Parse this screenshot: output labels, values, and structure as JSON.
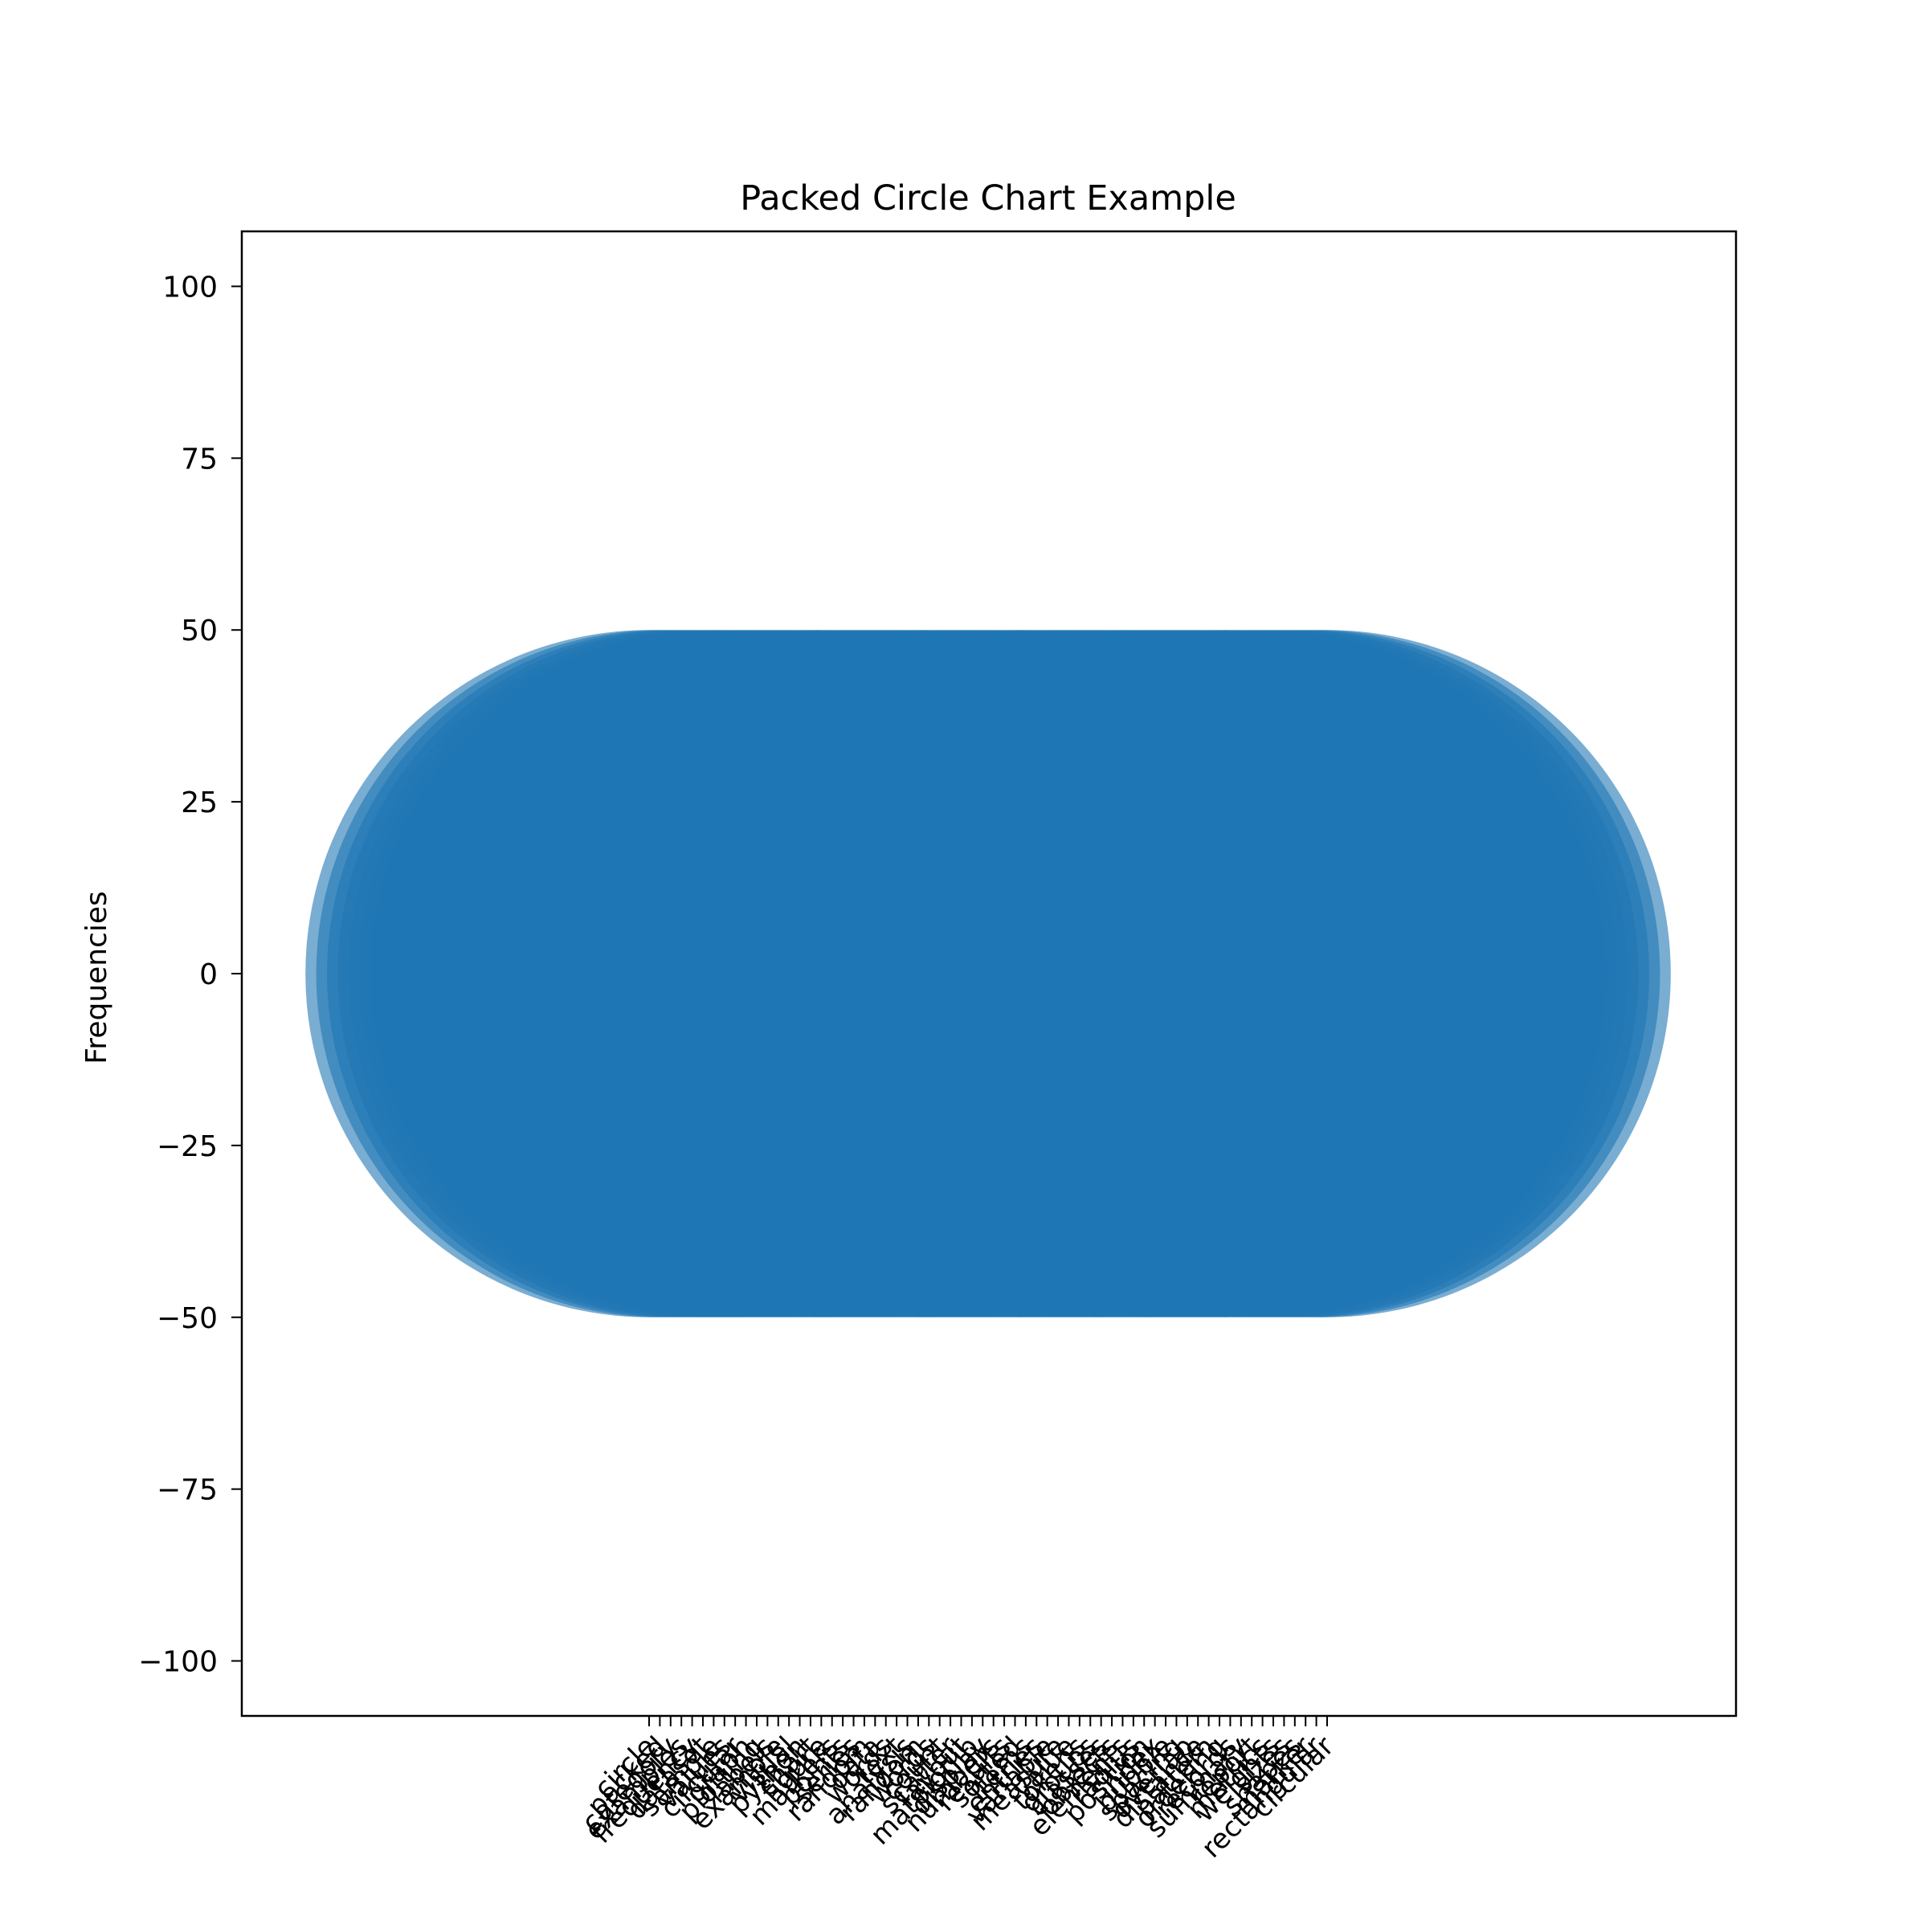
{
  "chart_data": {
    "type": "scatter",
    "title": "Packed Circle Chart Example",
    "xlabel": "",
    "ylabel": "Frequencies",
    "ylim": [
      -108,
      108
    ],
    "y_ticks": [
      "100",
      "75",
      "50",
      "25",
      "0",
      "−25",
      "−50",
      "−75",
      "−100"
    ],
    "y_tick_values": [
      100,
      75,
      50,
      25,
      0,
      -25,
      -50,
      -75,
      -100
    ],
    "x_tick_count": 64,
    "marker_size": 100,
    "grid": false,
    "colors": {
      "marker": "#1f77b4",
      "axes": "#000000",
      "background": "#ffffff"
    },
    "x_tick_labels": [
      "circle",
      "packed",
      "category",
      "examples",
      "frequency",
      "dataset",
      "sample",
      "values",
      "circular",
      "graph",
      "plotting",
      "labels",
      "example",
      "visual",
      "python",
      "chart",
      "figure",
      "markers",
      "points",
      "series",
      "random",
      "data",
      "words",
      "text",
      "analysis",
      "random",
      "words",
      "count",
      "scatter",
      "layout",
      "matplotlib",
      "display",
      "numbers",
      "results",
      "sorted",
      "items",
      "entries",
      "variable",
      "measure",
      "value",
      "tokens",
      "groups",
      "classes",
      "objects",
      "elements",
      "radius",
      "position",
      "index",
      "bubble",
      "spacing",
      "overlap",
      "distance",
      "pattern",
      "ordering",
      "records",
      "summary",
      "report",
      "metrics",
      "weights",
      "sizes",
      "shapes",
      "marker",
      "rectangular",
      "circular"
    ]
  }
}
